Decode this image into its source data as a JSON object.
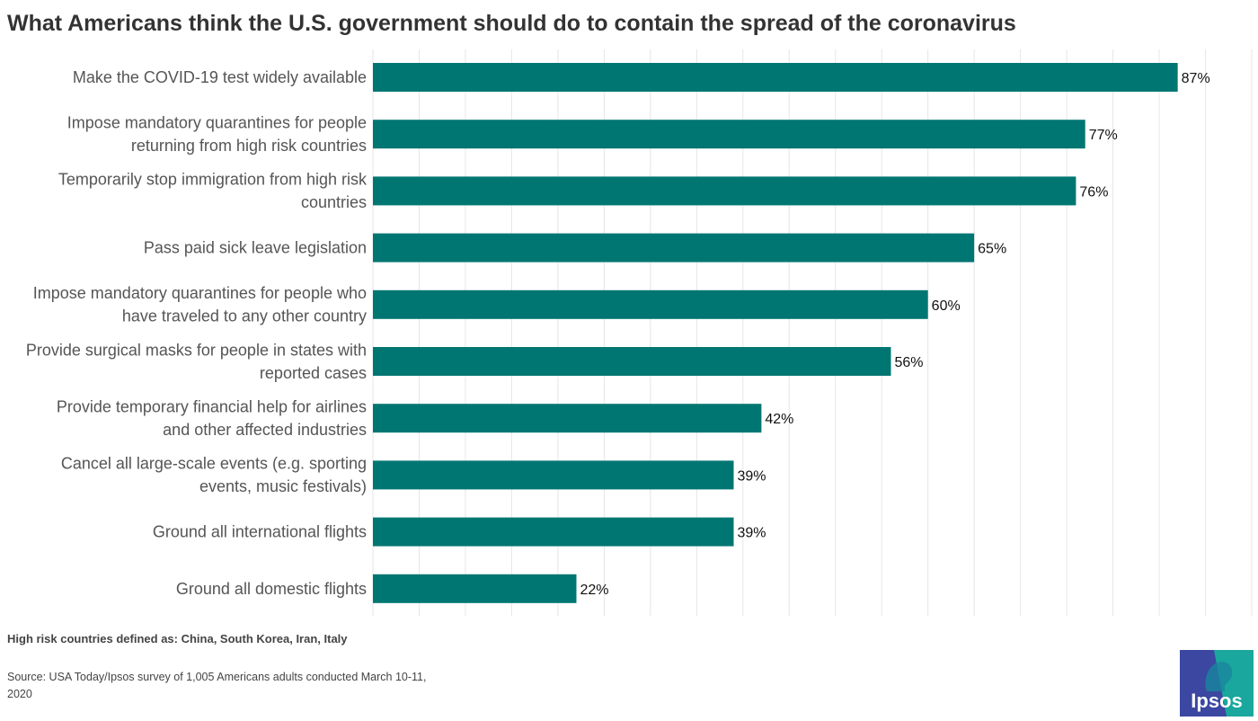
{
  "chart_data": {
    "type": "bar",
    "orientation": "horizontal",
    "title": "What Americans think the U.S. government should do to contain the spread of the coronavirus",
    "categories": [
      [
        "Make the COVID-19 test widely available"
      ],
      [
        "Impose mandatory quarantines for people",
        "returning from high risk countries"
      ],
      [
        "Temporarily stop immigration from high risk",
        "countries"
      ],
      [
        "Pass paid sick leave legislation"
      ],
      [
        "Impose mandatory quarantines for people who",
        "have traveled to any other country"
      ],
      [
        "Provide surgical masks for people in states with",
        "reported cases"
      ],
      [
        "Provide temporary financial help for airlines",
        "and other affected industries"
      ],
      [
        "Cancel all large-scale events (e.g. sporting",
        "events, music festivals)"
      ],
      [
        "Ground all international flights"
      ],
      [
        "Ground all domestic flights"
      ]
    ],
    "values": [
      87,
      77,
      76,
      65,
      60,
      56,
      42,
      39,
      39,
      22
    ],
    "value_labels": [
      "87%",
      "77%",
      "76%",
      "65%",
      "60%",
      "56%",
      "42%",
      "39%",
      "39%",
      "22%"
    ],
    "xlim": [
      0,
      95
    ],
    "grid_step": 5,
    "grid": true,
    "bar_color": "#007672",
    "xlabel": "",
    "ylabel": ""
  },
  "footnote": "High risk countries defined as: China, South Korea, Iran, Italy",
  "source": "Source: USA Today/Ipsos survey of 1,005 Americans adults conducted March 10-11, 2020",
  "logo": {
    "text": "Ipsos",
    "colors": [
      "#3b47a0",
      "#1aa79d"
    ]
  }
}
